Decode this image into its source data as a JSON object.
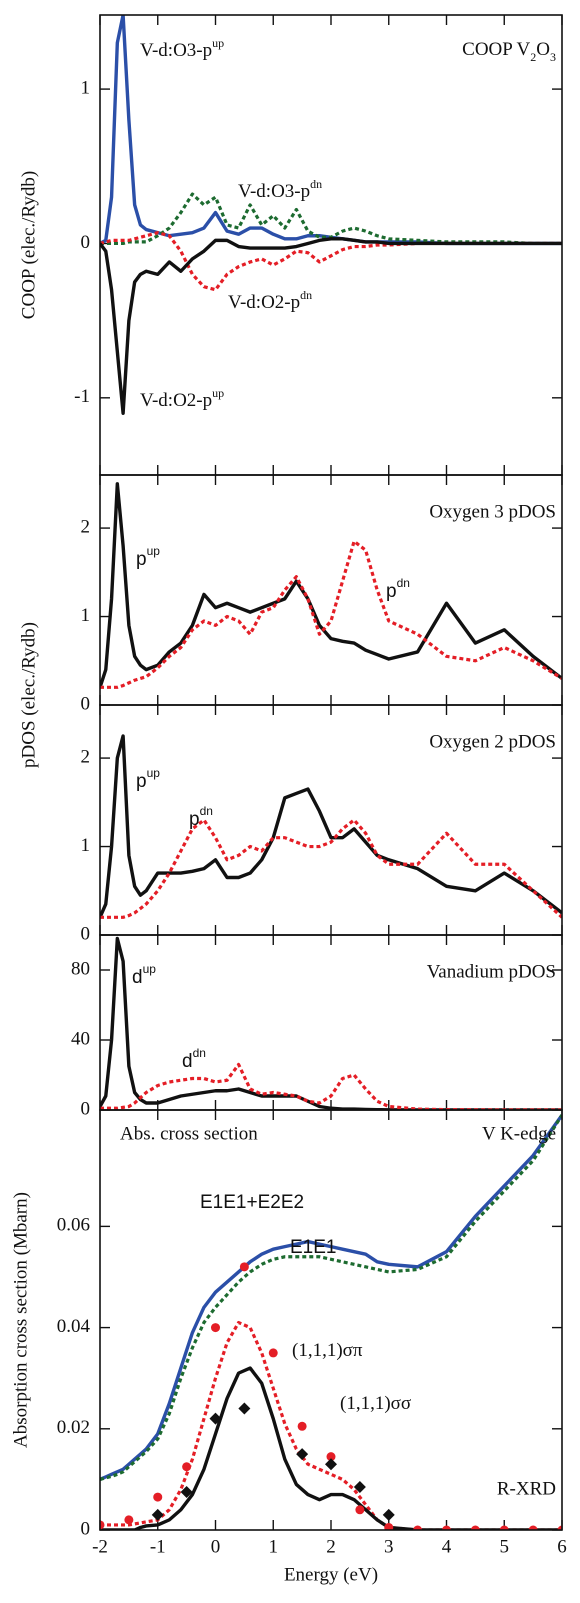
{
  "chart_data": [
    {
      "type": "line",
      "title_parts": [
        {
          "text": "COOP V"
        },
        {
          "text": "2",
          "sub": true
        },
        {
          "text": "O"
        },
        {
          "text": "3",
          "sub": true
        }
      ],
      "ylabel": "COOP (elec./Rydb)",
      "xlim": [
        -2,
        6
      ],
      "ylim": [
        -1.5,
        1.48
      ],
      "yticks": [
        -1,
        0,
        1
      ],
      "x": [
        -2,
        -1.9,
        -1.8,
        -1.7,
        -1.6,
        -1.5,
        -1.4,
        -1.3,
        -1.2,
        -1,
        -0.8,
        -0.6,
        -0.4,
        -0.2,
        0,
        0.2,
        0.4,
        0.6,
        0.8,
        1,
        1.2,
        1.4,
        1.6,
        1.8,
        2,
        2.2,
        2.4,
        2.6,
        2.8,
        3,
        3.5,
        4,
        4.5,
        5,
        5.5,
        6
      ],
      "series": [
        {
          "name": "V-d:O3-p",
          "name_sup": "up",
          "color": "#2b4fa8",
          "style": "solid",
          "values": [
            0,
            0.02,
            0.3,
            1.3,
            1.48,
            0.8,
            0.25,
            0.12,
            0.09,
            0.07,
            0.05,
            0.06,
            0.07,
            0.1,
            0.2,
            0.08,
            0.06,
            0.1,
            0.1,
            0.06,
            0.03,
            0.03,
            0.05,
            0.05,
            0.04,
            0.03,
            0.02,
            0.01,
            0.01,
            0.01,
            0.01,
            0,
            0,
            0,
            0,
            0
          ]
        },
        {
          "name": "V-d:O3-p",
          "name_sup": "dn",
          "color": "#1d6b30",
          "style": "dotted",
          "values": [
            0,
            0,
            0,
            0,
            0,
            0.01,
            0.01,
            0.01,
            0.01,
            0.05,
            0.1,
            0.2,
            0.32,
            0.25,
            0.3,
            0.12,
            0.1,
            0.25,
            0.12,
            0.18,
            0.1,
            0.22,
            0.08,
            0.04,
            0.04,
            0.08,
            0.1,
            0.08,
            0.05,
            0.03,
            0.02,
            0.01,
            0.01,
            0.01,
            0,
            0
          ]
        },
        {
          "name": "V-d:O2-p",
          "name_sup": "dn",
          "color": "#e41e26",
          "style": "dotted",
          "values": [
            0,
            0.01,
            0.02,
            0.02,
            0.02,
            0.02,
            0.03,
            0.04,
            0.05,
            0.07,
            0.05,
            -0.05,
            -0.2,
            -0.28,
            -0.3,
            -0.2,
            -0.15,
            -0.12,
            -0.1,
            -0.14,
            -0.1,
            -0.05,
            -0.06,
            -0.12,
            -0.08,
            -0.04,
            -0.02,
            -0.02,
            -0.01,
            -0.01,
            0,
            0,
            0,
            0,
            0,
            0
          ]
        },
        {
          "name": "V-d:O2-p",
          "name_sup": "up",
          "color": "#111111",
          "style": "solid",
          "values": [
            0,
            -0.05,
            -0.3,
            -0.7,
            -1.1,
            -0.5,
            -0.25,
            -0.2,
            -0.18,
            -0.2,
            -0.12,
            -0.18,
            -0.1,
            -0.05,
            0.02,
            0.02,
            -0.02,
            -0.03,
            -0.03,
            -0.03,
            -0.03,
            -0.02,
            0,
            0.02,
            0.03,
            0.03,
            0.02,
            0.01,
            0.01,
            0,
            0,
            0,
            0,
            0,
            0,
            0
          ]
        }
      ]
    },
    {
      "type": "line",
      "title": "Oxygen 3 pDOS",
      "xlim": [
        -2,
        6
      ],
      "ylim": [
        0,
        2.6
      ],
      "yticks": [
        0,
        1,
        2
      ],
      "x": [
        -2,
        -1.9,
        -1.8,
        -1.7,
        -1.6,
        -1.5,
        -1.4,
        -1.3,
        -1.2,
        -1,
        -0.8,
        -0.6,
        -0.4,
        -0.2,
        0,
        0.2,
        0.4,
        0.6,
        0.8,
        1,
        1.2,
        1.4,
        1.6,
        1.8,
        2,
        2.2,
        2.4,
        2.6,
        2.8,
        3,
        3.5,
        4,
        4.5,
        5,
        5.5,
        6
      ],
      "series": [
        {
          "name": "p",
          "name_sup": "up",
          "color": "#111111",
          "style": "solid",
          "values": [
            0.2,
            0.4,
            1.2,
            2.5,
            1.8,
            0.9,
            0.55,
            0.45,
            0.4,
            0.45,
            0.6,
            0.7,
            0.9,
            1.25,
            1.1,
            1.15,
            1.1,
            1.05,
            1.1,
            1.15,
            1.2,
            1.4,
            1.2,
            0.9,
            0.75,
            0.72,
            0.7,
            0.62,
            0.57,
            0.52,
            0.6,
            1.15,
            0.7,
            0.85,
            0.55,
            0.3
          ]
        },
        {
          "name": "p",
          "name_sup": "dn",
          "color": "#e41e26",
          "style": "dotted",
          "values": [
            0.2,
            0.2,
            0.2,
            0.2,
            0.22,
            0.25,
            0.28,
            0.3,
            0.32,
            0.42,
            0.55,
            0.65,
            0.85,
            0.95,
            0.9,
            1,
            0.95,
            0.8,
            1.05,
            1.1,
            1.3,
            1.45,
            1.2,
            0.8,
            0.95,
            1.4,
            1.85,
            1.75,
            1.3,
            0.95,
            0.8,
            0.55,
            0.5,
            0.65,
            0.5,
            0.3
          ]
        }
      ]
    },
    {
      "type": "line",
      "title": "Oxygen 2 pDOS",
      "ylabel": "pDOS (elec./Rydb)",
      "xlim": [
        -2,
        6
      ],
      "ylim": [
        0,
        2.6
      ],
      "yticks": [
        0,
        1,
        2
      ],
      "x": [
        -2,
        -1.9,
        -1.8,
        -1.7,
        -1.6,
        -1.5,
        -1.4,
        -1.3,
        -1.2,
        -1,
        -0.8,
        -0.6,
        -0.4,
        -0.2,
        0,
        0.2,
        0.4,
        0.6,
        0.8,
        1,
        1.2,
        1.4,
        1.6,
        1.8,
        2,
        2.2,
        2.4,
        2.6,
        2.8,
        3,
        3.5,
        4,
        4.5,
        5,
        5.5,
        6
      ],
      "series": [
        {
          "name": "p",
          "name_sup": "up",
          "color": "#111111",
          "style": "solid",
          "values": [
            0.2,
            0.35,
            1,
            2,
            2.25,
            0.9,
            0.55,
            0.45,
            0.5,
            0.7,
            0.7,
            0.7,
            0.72,
            0.75,
            0.85,
            0.65,
            0.65,
            0.7,
            0.85,
            1.1,
            1.55,
            1.6,
            1.65,
            1.4,
            1.1,
            1.1,
            1.2,
            1.05,
            0.9,
            0.85,
            0.75,
            0.55,
            0.5,
            0.7,
            0.5,
            0.25
          ]
        },
        {
          "name": "p",
          "name_sup": "dn",
          "color": "#e41e26",
          "style": "dotted",
          "values": [
            0.2,
            0.2,
            0.2,
            0.2,
            0.2,
            0.22,
            0.25,
            0.3,
            0.35,
            0.5,
            0.7,
            0.95,
            1.2,
            1.3,
            1.1,
            0.85,
            0.9,
            1,
            0.95,
            1.1,
            1.1,
            1.05,
            1,
            1,
            1.05,
            1.2,
            1.3,
            1.15,
            0.9,
            0.8,
            0.8,
            1.15,
            0.8,
            0.8,
            0.5,
            0.2
          ]
        }
      ]
    },
    {
      "type": "line",
      "title": "Vanadium pDOS",
      "xlim": [
        -2,
        6
      ],
      "ylim": [
        0,
        100
      ],
      "yticks": [
        0,
        40,
        80
      ],
      "x": [
        -2,
        -1.9,
        -1.8,
        -1.7,
        -1.6,
        -1.5,
        -1.4,
        -1.3,
        -1.2,
        -1,
        -0.8,
        -0.6,
        -0.4,
        -0.2,
        0,
        0.2,
        0.4,
        0.6,
        0.8,
        1,
        1.2,
        1.4,
        1.6,
        1.8,
        2,
        2.2,
        2.4,
        2.6,
        2.8,
        3,
        3.5,
        4,
        4.5,
        5,
        5.5,
        6
      ],
      "series": [
        {
          "name": "d",
          "name_sup": "up",
          "color": "#111111",
          "style": "solid",
          "values": [
            2,
            8,
            40,
            98,
            85,
            25,
            10,
            6,
            4,
            4,
            6,
            8,
            9,
            10,
            11,
            11,
            12,
            10,
            8,
            8,
            8,
            8,
            5,
            2,
            1,
            0.5,
            0.5,
            0.3,
            0.2,
            0.1,
            0,
            0,
            0,
            0,
            0,
            0
          ]
        },
        {
          "name": "d",
          "name_sup": "dn",
          "color": "#e41e26",
          "style": "dotted",
          "values": [
            1,
            1,
            1,
            1,
            1.5,
            2,
            4,
            7,
            10,
            14,
            16,
            17,
            18,
            18,
            16,
            17,
            26,
            12,
            9,
            10,
            9,
            8,
            5,
            4,
            8,
            18,
            20,
            12,
            5,
            2,
            0.5,
            0.2,
            0.1,
            0,
            0,
            0
          ]
        }
      ]
    },
    {
      "type": "line",
      "annotations": [
        "Abs. cross section",
        "V K-edge",
        "R-XRD"
      ],
      "ylabel": "Absorption cross section (Mbarn)",
      "xlabel": "Energy (eV)",
      "xlim": [
        -2,
        6
      ],
      "xticks": [
        -2,
        -1,
        0,
        1,
        2,
        3,
        4,
        5,
        6
      ],
      "ylim": [
        0,
        0.083
      ],
      "yticks": [
        0,
        0.02,
        0.04,
        0.06
      ],
      "x": [
        -2,
        -1.9,
        -1.8,
        -1.7,
        -1.6,
        -1.5,
        -1.4,
        -1.3,
        -1.2,
        -1,
        -0.8,
        -0.6,
        -0.4,
        -0.2,
        0,
        0.2,
        0.4,
        0.6,
        0.8,
        1,
        1.2,
        1.4,
        1.6,
        1.8,
        2,
        2.2,
        2.4,
        2.6,
        2.8,
        3,
        3.5,
        4,
        4.5,
        5,
        5.5,
        6
      ],
      "series": [
        {
          "name": "E1E1+E2E2",
          "color": "#2b4fa8",
          "style": "solid",
          "values": [
            0.01,
            0.0105,
            0.011,
            0.0115,
            0.012,
            0.013,
            0.014,
            0.015,
            0.016,
            0.019,
            0.025,
            0.032,
            0.039,
            0.044,
            0.047,
            0.049,
            0.051,
            0.053,
            0.0545,
            0.0555,
            0.056,
            0.0565,
            0.057,
            0.0565,
            0.056,
            0.0555,
            0.055,
            0.0545,
            0.053,
            0.0525,
            0.052,
            0.055,
            0.062,
            0.068,
            0.074,
            0.082
          ]
        },
        {
          "name": "E1E1",
          "color": "#1d6b30",
          "style": "dotted",
          "values": [
            0.01,
            0.0103,
            0.0106,
            0.011,
            0.0115,
            0.0125,
            0.0135,
            0.0145,
            0.0155,
            0.018,
            0.023,
            0.03,
            0.036,
            0.041,
            0.044,
            0.0465,
            0.049,
            0.051,
            0.0525,
            0.0535,
            0.054,
            0.054,
            0.054,
            0.054,
            0.0535,
            0.053,
            0.0525,
            0.052,
            0.0515,
            0.051,
            0.0515,
            0.054,
            0.061,
            0.067,
            0.073,
            0.082
          ]
        },
        {
          "name": "(1,1,1)σπ",
          "color": "#e41e26",
          "style": "dotted",
          "values": [
            0.001,
            0.001,
            0.001,
            0.001,
            0.001,
            0.001,
            0.0012,
            0.0014,
            0.0016,
            0.002,
            0.004,
            0.008,
            0.014,
            0.022,
            0.03,
            0.037,
            0.041,
            0.04,
            0.035,
            0.028,
            0.021,
            0.016,
            0.013,
            0.012,
            0.011,
            0.01,
            0.008,
            0.005,
            0.002,
            0.0005,
            0,
            0,
            0,
            0,
            0,
            0
          ]
        },
        {
          "name": "(1,1,1)σσ",
          "color": "#111111",
          "style": "solid",
          "values": [
            0,
            0,
            0,
            0,
            0,
            0,
            0,
            0.0005,
            0.0008,
            0.001,
            0.002,
            0.004,
            0.007,
            0.012,
            0.019,
            0.026,
            0.031,
            0.032,
            0.029,
            0.022,
            0.014,
            0.009,
            0.007,
            0.006,
            0.007,
            0.007,
            0.006,
            0.004,
            0.002,
            0.0005,
            0,
            0,
            0,
            0,
            0,
            0
          ]
        },
        {
          "color": "#e41e26",
          "style": "marker",
          "marker": "circle",
          "x": [
            -2,
            -1.5,
            -1,
            -0.5,
            0,
            0.5,
            1,
            1.5,
            2,
            2.5,
            3,
            3.5,
            4,
            4.5,
            5,
            5.5,
            6
          ],
          "values": [
            0.001,
            0.002,
            0.0065,
            0.0125,
            0.04,
            0.052,
            0.035,
            0.0205,
            0.0145,
            0.004,
            0.0005,
            0,
            0,
            0,
            0,
            0,
            0
          ]
        },
        {
          "color": "#111111",
          "style": "marker",
          "marker": "diamond",
          "x": [
            -1,
            -0.5,
            0,
            0.5,
            1.5,
            2,
            2.5,
            3
          ],
          "values": [
            0.003,
            0.0075,
            0.022,
            0.024,
            0.015,
            0.013,
            0.0085,
            0.003
          ]
        }
      ]
    }
  ]
}
